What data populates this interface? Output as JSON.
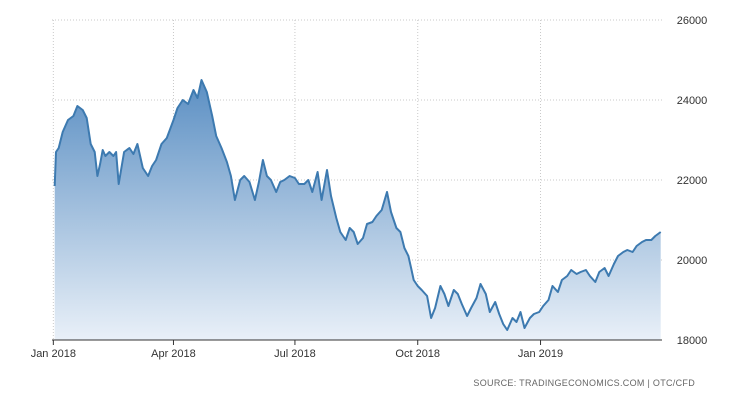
{
  "chart_data": {
    "type": "area",
    "title": "",
    "xlabel": "",
    "ylabel": "",
    "x_ticks": [
      "Jan 2018",
      "Apr 2018",
      "Jul 2018",
      "Oct 2018",
      "Jan 2019"
    ],
    "y_ticks": [
      18000,
      20000,
      22000,
      24000,
      26000
    ],
    "ylim": [
      18000,
      26000
    ],
    "y_axis_position": "right",
    "grid": true,
    "legend": "none",
    "series": [
      {
        "x": [
          "2018-01-02",
          "2018-01-03",
          "2018-01-05",
          "2018-01-08",
          "2018-01-12",
          "2018-01-16",
          "2018-01-19",
          "2018-01-23",
          "2018-01-26",
          "2018-01-29",
          "2018-02-01",
          "2018-02-03",
          "2018-02-05",
          "2018-02-07",
          "2018-02-09",
          "2018-02-12",
          "2018-02-15",
          "2018-02-17",
          "2018-02-19",
          "2018-02-23",
          "2018-02-27",
          "2018-03-02",
          "2018-03-05",
          "2018-03-09",
          "2018-03-13",
          "2018-03-16",
          "2018-03-19",
          "2018-03-23",
          "2018-03-27",
          "2018-04-01",
          "2018-04-04",
          "2018-04-08",
          "2018-04-12",
          "2018-04-16",
          "2018-04-19",
          "2018-04-22",
          "2018-04-26",
          "2018-04-30",
          "2018-05-03",
          "2018-05-07",
          "2018-05-11",
          "2018-05-14",
          "2018-05-17",
          "2018-05-21",
          "2018-05-24",
          "2018-05-28",
          "2018-06-01",
          "2018-06-04",
          "2018-06-07",
          "2018-06-10",
          "2018-06-13",
          "2018-06-17",
          "2018-06-20",
          "2018-06-23",
          "2018-06-27",
          "2018-07-01",
          "2018-07-04",
          "2018-07-08",
          "2018-07-11",
          "2018-07-14",
          "2018-07-18",
          "2018-07-21",
          "2018-07-25",
          "2018-07-28",
          "2018-08-01",
          "2018-08-04",
          "2018-08-08",
          "2018-08-11",
          "2018-08-14",
          "2018-08-17",
          "2018-08-21",
          "2018-08-24",
          "2018-08-28",
          "2018-08-31",
          "2018-09-04",
          "2018-09-08",
          "2018-09-11",
          "2018-09-15",
          "2018-09-18",
          "2018-09-21",
          "2018-09-24",
          "2018-09-26",
          "2018-09-28",
          "2018-10-01",
          "2018-10-04",
          "2018-10-08",
          "2018-10-11",
          "2018-10-14",
          "2018-10-18",
          "2018-10-21",
          "2018-10-24",
          "2018-10-28",
          "2018-10-31",
          "2018-11-03",
          "2018-11-07",
          "2018-11-10",
          "2018-11-14",
          "2018-11-17",
          "2018-11-21",
          "2018-11-24",
          "2018-11-28",
          "2018-12-01",
          "2018-12-04",
          "2018-12-07",
          "2018-12-11",
          "2018-12-14",
          "2018-12-17",
          "2018-12-20",
          "2018-12-24",
          "2018-12-27",
          "2018-12-31",
          "2019-01-03",
          "2019-01-07",
          "2019-01-10",
          "2019-01-14",
          "2019-01-17",
          "2019-01-21",
          "2019-01-24",
          "2019-01-28",
          "2019-01-31",
          "2019-02-04",
          "2019-02-07",
          "2019-02-11",
          "2019-02-14",
          "2019-02-18",
          "2019-02-21",
          "2019-02-25",
          "2019-02-28",
          "2019-03-04",
          "2019-03-07",
          "2019-03-11",
          "2019-03-14",
          "2019-03-18",
          "2019-03-21",
          "2019-03-25",
          "2019-03-28",
          "2019-04-01"
        ],
        "values": [
          21850,
          22700,
          22800,
          23200,
          23500,
          23600,
          23850,
          23750,
          23550,
          22900,
          22700,
          22100,
          22400,
          22750,
          22600,
          22700,
          22600,
          22700,
          21900,
          22700,
          22800,
          22650,
          22900,
          22300,
          22100,
          22350,
          22500,
          22900,
          23050,
          23500,
          23800,
          24000,
          23900,
          24250,
          24050,
          24500,
          24200,
          23600,
          23100,
          22800,
          22450,
          22100,
          21500,
          22000,
          22100,
          21950,
          21500,
          21950,
          22500,
          22100,
          22000,
          21700,
          21950,
          22000,
          22100,
          22050,
          21900,
          21900,
          22000,
          21700,
          22200,
          21500,
          22250,
          21600,
          21050,
          20700,
          20500,
          20800,
          20700,
          20400,
          20550,
          20900,
          20950,
          21100,
          21250,
          21700,
          21200,
          20800,
          20700,
          20300,
          20100,
          19800,
          19500,
          19350,
          19250,
          19100,
          18550,
          18800,
          19350,
          19150,
          18850,
          19250,
          19150,
          18900,
          18600,
          18800,
          19050,
          19400,
          19150,
          18700,
          18950,
          18650,
          18400,
          18250,
          18550,
          18450,
          18700,
          18300,
          18550,
          18650,
          18700,
          18850,
          19000,
          19350,
          19200,
          19500,
          19600,
          19750,
          19650,
          19700,
          19750,
          19600,
          19450,
          19700,
          19800,
          19600,
          19900,
          20100,
          20200,
          20250,
          20200,
          20350,
          20450,
          20500,
          20500,
          20600,
          20700
        ]
      }
    ],
    "x_range": [
      "2017-12-31",
      "2019-04-02"
    ],
    "colors": {
      "line": "#3d7ab0",
      "fill_top": "#5b8fc3",
      "fill_bottom": "#e9f0f8",
      "grid": "#c9c9c9",
      "axis": "#333333"
    }
  },
  "source_text": "SOURCE: TRADINGECONOMICS.COM | OTC/CFD"
}
